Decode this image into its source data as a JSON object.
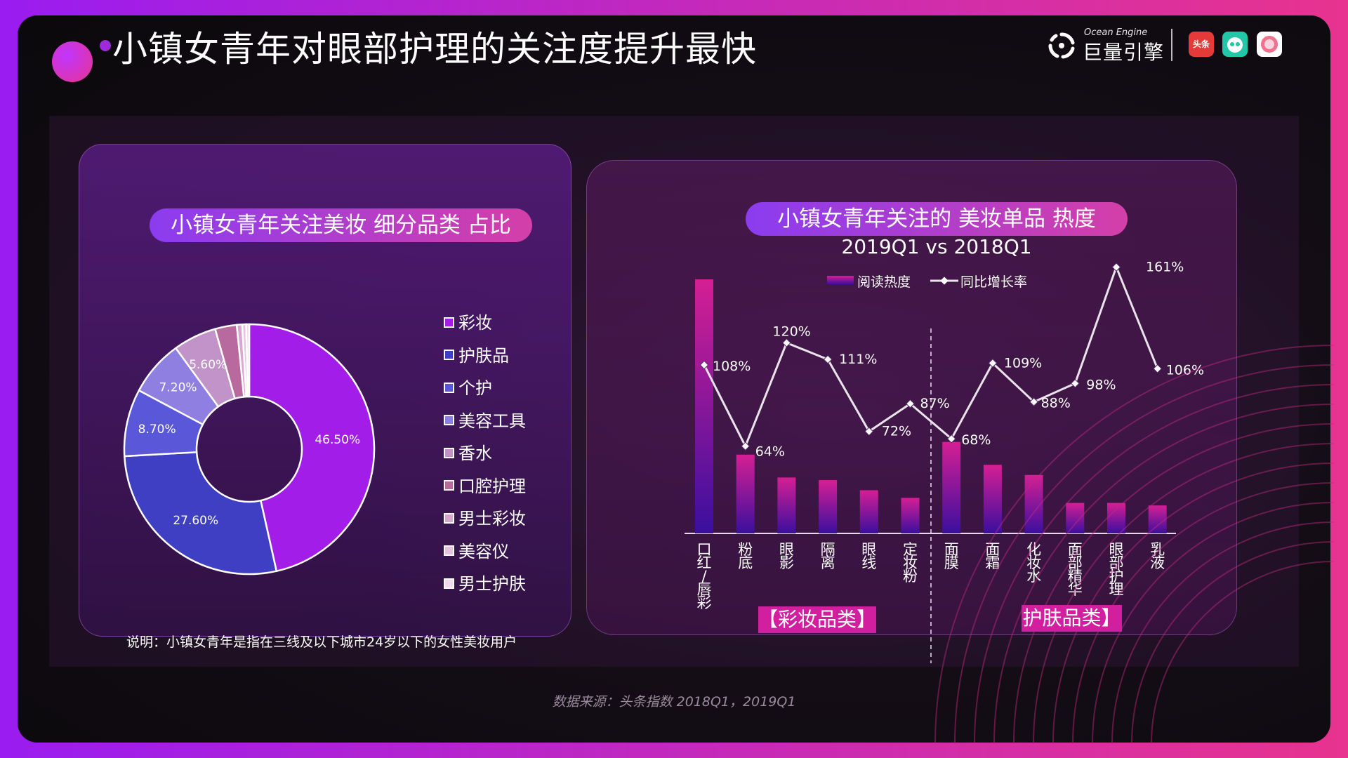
{
  "header": {
    "title": "小镇女青年对眼部护理的关注度提升最快",
    "logo_sub": "Ocean Engine",
    "logo_main": "巨量引擎",
    "app_toutiao": "头条"
  },
  "left_panel": {
    "heading": "小镇女青年关注美妆 细分品类 占比",
    "note": "说明：小镇女青年是指在三线及以下城市24岁以下的女性美妆用户"
  },
  "right_panel": {
    "heading": "小镇女青年关注的 美妆单品 热度",
    "subtitle": "2019Q1 vs 2018Q1",
    "tag_makeup": "【彩妆品类】",
    "tag_skincare": "护肤品类】"
  },
  "source": "数据来源：头条指数 2018Q1，2019Q1",
  "colors": {
    "accent_pink": "#d21fa0",
    "accent_purple": "#8b3cf0"
  },
  "chart_data": [
    {
      "type": "pie",
      "style": "donut",
      "categories": [
        "彩妆",
        "护肤品",
        "个护",
        "美容工具",
        "香水",
        "口腔护理",
        "男士彩妆",
        "美容仪",
        "男士护肤"
      ],
      "values": [
        46.5,
        27.6,
        8.7,
        7.2,
        5.6,
        2.8,
        0.7,
        0.5,
        0.4
      ],
      "data_labels": [
        "46.50%",
        "27.60%",
        "8.70%",
        "7.20%",
        "5.60%",
        "",
        "",
        "",
        ""
      ],
      "colors": [
        "#a21ee8",
        "#3f3fc4",
        "#5a57d8",
        "#8f7fe0",
        "#c293c9",
        "#b8699e",
        "#d8a6d0",
        "#e7c3e2",
        "#f1d9ee"
      ],
      "legend_position": "right"
    },
    {
      "type": "bar",
      "categories": [
        "口红/唇彩",
        "粉底",
        "眼影",
        "隔离",
        "眼线",
        "定妆粉",
        "面膜",
        "面霜",
        "化妆水",
        "面部精华",
        "眼部护理",
        "乳液"
      ],
      "series": [
        {
          "name": "阅读热度",
          "type": "bar",
          "values": [
            100,
            31,
            22,
            21,
            17,
            14,
            36,
            27,
            23,
            12,
            12,
            11
          ]
        },
        {
          "name": "同比增长率",
          "type": "line",
          "values": [
            108,
            64,
            120,
            111,
            72,
            87,
            68,
            109,
            88,
            98,
            161,
            106
          ],
          "labels": [
            "108%",
            "64%",
            "120%",
            "111%",
            "72%",
            "87%",
            "68%",
            "109%",
            "88%",
            "98%",
            "161%",
            "106%"
          ]
        }
      ],
      "groups": [
        {
          "name": "【彩妆品类】",
          "categories": [
            "口红/唇彩",
            "粉底",
            "眼影",
            "隔离",
            "眼线",
            "定妆粉"
          ]
        },
        {
          "name": "护肤品类】",
          "categories": [
            "面膜",
            "面霜",
            "化妆水",
            "面部精华",
            "眼部护理",
            "乳液"
          ]
        }
      ],
      "legend_position": "top",
      "grid": false
    }
  ]
}
